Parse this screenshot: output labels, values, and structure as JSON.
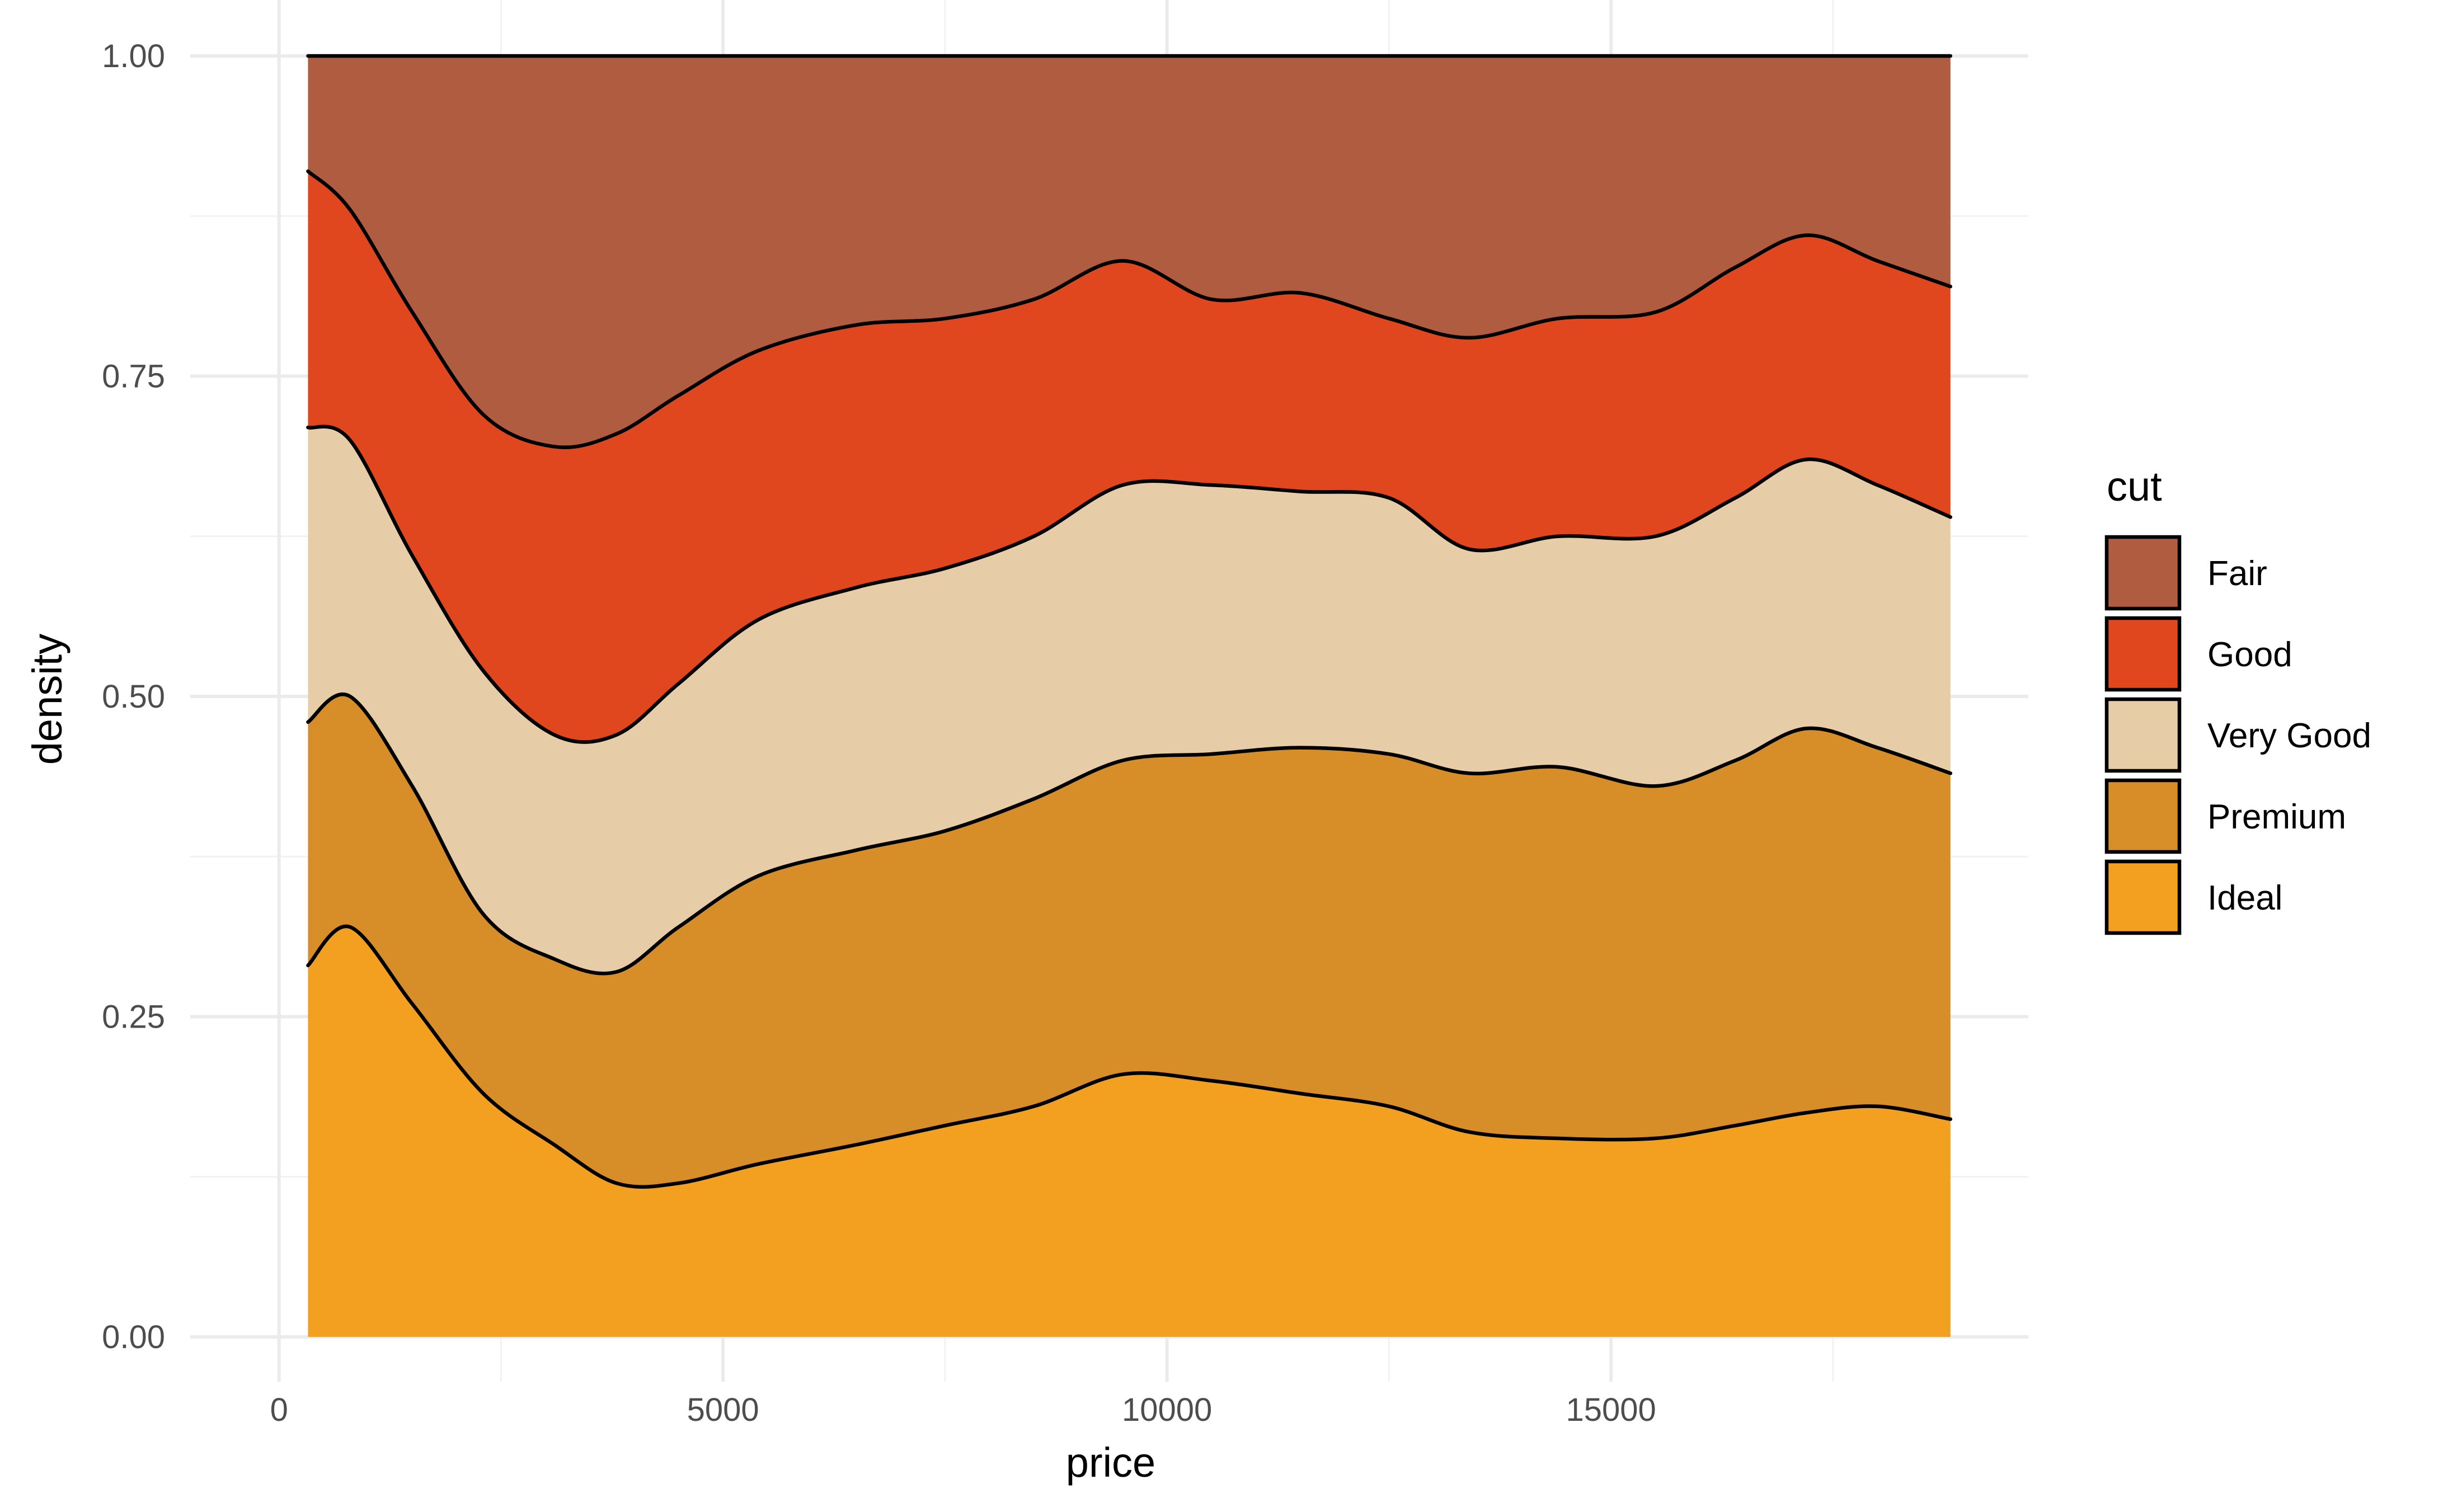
{
  "chart_data": {
    "type": "area",
    "subtype": "stacked filled density (position fill)",
    "title": "",
    "xlabel": "price",
    "ylabel": "density",
    "xlim": [
      -1000,
      19700
    ],
    "ylim": [
      0,
      1.0
    ],
    "x_ticks": [
      0,
      5000,
      10000,
      15000
    ],
    "x_tick_labels": [
      "0",
      "5000",
      "10000",
      "15000"
    ],
    "y_ticks": [
      0,
      0.25,
      0.5,
      0.75,
      1.0
    ],
    "y_tick_labels": [
      "0.00",
      "0.25",
      "0.50",
      "0.75",
      "1.00"
    ],
    "grid": true,
    "legend": {
      "title": "cut",
      "position": "right",
      "entries": [
        "Fair",
        "Good",
        "Very Good",
        "Premium",
        "Ideal"
      ]
    },
    "colors": {
      "Fair": "#B05C40",
      "Good": "#E0471E",
      "Very Good": "#E6CDA8",
      "Premium": "#D88E28",
      "Ideal": "#F39F20"
    },
    "x": [
      326,
      800,
      1500,
      2300,
      3100,
      3800,
      4500,
      5400,
      6500,
      7500,
      8500,
      9500,
      10500,
      11500,
      12500,
      13400,
      14400,
      15500,
      16400,
      17200,
      18000,
      18823
    ],
    "series": [
      {
        "name": "Ideal",
        "cumulative_top": [
          0.29,
          0.32,
          0.26,
          0.19,
          0.15,
          0.12,
          0.12,
          0.135,
          0.15,
          0.165,
          0.18,
          0.205,
          0.2,
          0.19,
          0.18,
          0.16,
          0.155,
          0.155,
          0.165,
          0.175,
          0.18,
          0.17
        ]
      },
      {
        "name": "Premium",
        "cumulative_top": [
          0.48,
          0.5,
          0.43,
          0.33,
          0.295,
          0.285,
          0.32,
          0.36,
          0.38,
          0.395,
          0.42,
          0.45,
          0.455,
          0.46,
          0.455,
          0.44,
          0.445,
          0.43,
          0.45,
          0.475,
          0.46,
          0.44
        ]
      },
      {
        "name": "Very Good",
        "cumulative_top": [
          0.71,
          0.7,
          0.61,
          0.52,
          0.47,
          0.47,
          0.51,
          0.56,
          0.585,
          0.6,
          0.625,
          0.665,
          0.665,
          0.66,
          0.655,
          0.615,
          0.625,
          0.625,
          0.655,
          0.685,
          0.665,
          0.64
        ]
      },
      {
        "name": "Good",
        "cumulative_top": [
          0.91,
          0.88,
          0.8,
          0.72,
          0.695,
          0.705,
          0.735,
          0.77,
          0.79,
          0.795,
          0.81,
          0.84,
          0.81,
          0.815,
          0.795,
          0.78,
          0.795,
          0.8,
          0.835,
          0.86,
          0.84,
          0.82
        ]
      },
      {
        "name": "Fair",
        "cumulative_top": [
          1.0,
          1.0,
          1.0,
          1.0,
          1.0,
          1.0,
          1.0,
          1.0,
          1.0,
          1.0,
          1.0,
          1.0,
          1.0,
          1.0,
          1.0,
          1.0,
          1.0,
          1.0,
          1.0,
          1.0,
          1.0,
          1.0
        ]
      }
    ]
  }
}
